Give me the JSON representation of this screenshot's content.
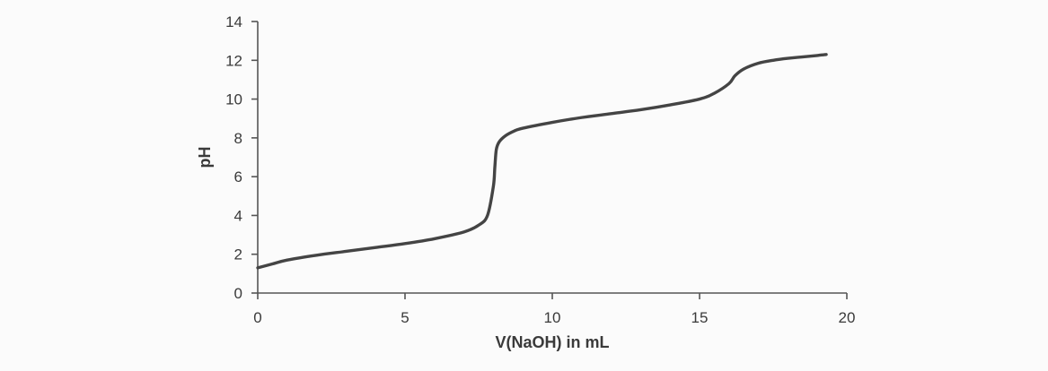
{
  "chart_data": {
    "type": "line",
    "title": "",
    "xlabel": "V(NaOH) in mL",
    "ylabel": "pH",
    "xlim": [
      0,
      20
    ],
    "ylim": [
      0,
      14
    ],
    "xticks": [
      0,
      5,
      10,
      15,
      20
    ],
    "yticks": [
      0,
      2,
      4,
      6,
      8,
      10,
      12,
      14
    ],
    "grid": false,
    "series": [
      {
        "color": "#444444",
        "x": [
          0,
          0.5,
          1,
          2,
          3,
          4,
          5,
          6,
          7,
          7.5,
          7.8,
          8.0,
          8.05,
          8.1,
          8.2,
          8.4,
          8.7,
          9,
          10,
          11,
          12,
          13,
          14,
          15,
          15.5,
          16,
          16.2,
          16.5,
          17,
          17.5,
          18,
          19,
          19.3
        ],
        "y": [
          1.3,
          1.5,
          1.7,
          1.95,
          2.15,
          2.35,
          2.55,
          2.8,
          3.15,
          3.5,
          4.0,
          5.5,
          6.5,
          7.4,
          7.8,
          8.1,
          8.35,
          8.5,
          8.8,
          9.05,
          9.25,
          9.45,
          9.7,
          10.0,
          10.3,
          10.8,
          11.2,
          11.55,
          11.85,
          12.0,
          12.1,
          12.25,
          12.3
        ]
      }
    ]
  }
}
